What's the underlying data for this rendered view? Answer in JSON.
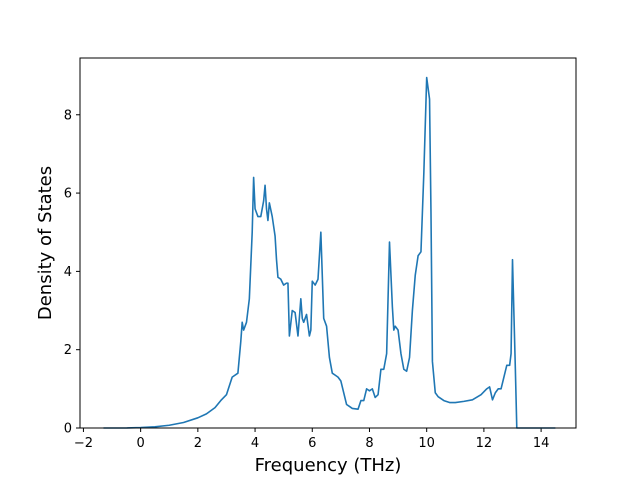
{
  "chart_data": {
    "type": "line",
    "title": "",
    "xlabel": "Frequency (THz)",
    "ylabel": "Density of States",
    "xlim": [
      -2.12,
      15.22
    ],
    "ylim": [
      0,
      9.45
    ],
    "xticks": [
      -2,
      0,
      2,
      4,
      6,
      8,
      10,
      12,
      14
    ],
    "yticks": [
      0,
      2,
      4,
      6,
      8
    ],
    "xtick_labels": [
      "−2",
      "0",
      "2",
      "4",
      "6",
      "8",
      "10",
      "12",
      "14"
    ],
    "ytick_labels": [
      "0",
      "2",
      "4",
      "6",
      "8"
    ],
    "grid": false,
    "legend": "none",
    "line_color": "#1f77b4",
    "series": [
      {
        "x": [
          -1.3,
          -1.0,
          -0.5,
          0.0,
          0.5,
          1.0,
          1.5,
          2.0,
          2.3,
          2.6,
          2.8,
          3.0,
          3.2,
          3.4,
          3.5,
          3.55,
          3.6,
          3.7,
          3.8,
          3.9,
          3.95,
          4.0,
          4.1,
          4.2,
          4.3,
          4.35,
          4.4,
          4.45,
          4.5,
          4.6,
          4.7,
          4.75,
          4.8,
          4.9,
          5.0,
          5.1,
          5.15,
          5.2,
          5.3,
          5.4,
          5.5,
          5.6,
          5.65,
          5.7,
          5.8,
          5.9,
          5.95,
          6.0,
          6.1,
          6.2,
          6.3,
          6.4,
          6.5,
          6.6,
          6.7,
          6.8,
          6.9,
          7.0,
          7.1,
          7.2,
          7.3,
          7.4,
          7.6,
          7.7,
          7.8,
          7.9,
          8.0,
          8.1,
          8.2,
          8.3,
          8.4,
          8.5,
          8.6,
          8.7,
          8.8,
          8.85,
          8.9,
          9.0,
          9.1,
          9.2,
          9.3,
          9.4,
          9.5,
          9.6,
          9.7,
          9.8,
          9.9,
          10.0,
          10.1,
          10.15,
          10.2,
          10.3,
          10.4,
          10.6,
          10.8,
          11.0,
          11.3,
          11.6,
          11.9,
          12.1,
          12.2,
          12.3,
          12.4,
          12.5,
          12.6,
          12.7,
          12.8,
          12.9,
          12.95,
          13.0,
          13.1,
          13.15,
          13.5,
          14.0,
          14.5
        ],
        "y": [
          0.0,
          0.0,
          0.0,
          0.01,
          0.03,
          0.07,
          0.14,
          0.26,
          0.36,
          0.52,
          0.7,
          0.85,
          1.3,
          1.4,
          2.2,
          2.7,
          2.5,
          2.7,
          3.3,
          5.0,
          6.4,
          5.6,
          5.4,
          5.4,
          5.8,
          6.2,
          5.6,
          5.3,
          5.75,
          5.4,
          4.9,
          4.3,
          3.85,
          3.8,
          3.65,
          3.7,
          3.7,
          2.35,
          3.0,
          2.95,
          2.35,
          3.3,
          2.8,
          2.7,
          2.9,
          2.35,
          2.5,
          3.75,
          3.65,
          3.8,
          5.0,
          2.8,
          2.6,
          1.8,
          1.4,
          1.35,
          1.3,
          1.2,
          0.9,
          0.6,
          0.55,
          0.5,
          0.48,
          0.7,
          0.7,
          1.0,
          0.95,
          1.0,
          0.78,
          0.85,
          1.5,
          1.5,
          1.9,
          4.75,
          3.1,
          2.5,
          2.6,
          2.5,
          1.9,
          1.5,
          1.45,
          1.8,
          3.0,
          3.9,
          4.4,
          4.5,
          6.5,
          8.95,
          8.4,
          5.5,
          1.7,
          0.9,
          0.8,
          0.7,
          0.65,
          0.65,
          0.68,
          0.72,
          0.85,
          1.0,
          1.05,
          0.72,
          0.9,
          1.0,
          1.0,
          1.3,
          1.6,
          1.6,
          1.9,
          4.3,
          1.5,
          0.0,
          0.0,
          0.0,
          0.0
        ]
      }
    ]
  }
}
